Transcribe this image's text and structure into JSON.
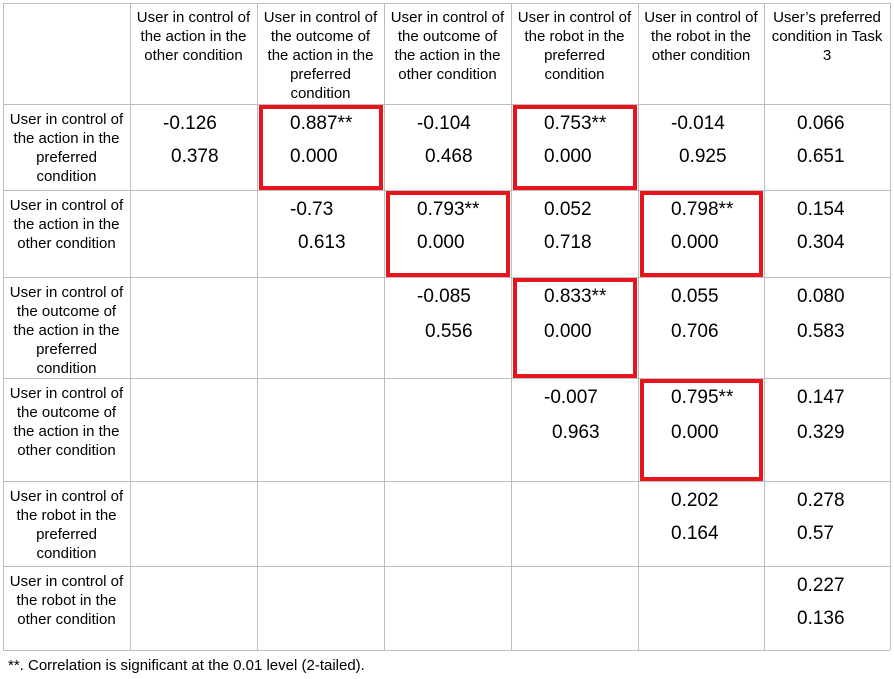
{
  "columns": [
    "User in control of the action in the other condition",
    "User in control of the outcome of the action in the preferred condition",
    "User in control of the outcome of the action in the other condition",
    "User in control of the robot in the preferred condition",
    "User in control of the robot in the other condition",
    "User’s preferred condition in Task 3"
  ],
  "rows": [
    {
      "label": "User in control of the action in the preferred condition",
      "cells": [
        {
          "r": "-0.126",
          "p": "0.378",
          "highlight": false
        },
        {
          "r": "0.887**",
          "p": "0.000",
          "highlight": true
        },
        {
          "r": "-0.104",
          "p": "0.468",
          "highlight": false
        },
        {
          "r": "0.753**",
          "p": "0.000",
          "highlight": true
        },
        {
          "r": "-0.014",
          "p": "0.925",
          "highlight": false
        },
        {
          "r": "0.066",
          "p": "0.651",
          "highlight": false
        }
      ]
    },
    {
      "label": "User in control of the action in the other condition",
      "cells": [
        null,
        {
          "r": "-0.73",
          "p": "0.613",
          "highlight": false
        },
        {
          "r": "0.793**",
          "p": "0.000",
          "highlight": true
        },
        {
          "r": "0.052",
          "p": "0.718",
          "highlight": false
        },
        {
          "r": "0.798**",
          "p": "0.000",
          "highlight": true
        },
        {
          "r": "0.154",
          "p": "0.304",
          "highlight": false
        }
      ]
    },
    {
      "label": "User in control of the outcome of the action in the preferred condition",
      "cells": [
        null,
        null,
        {
          "r": "-0.085",
          "p": "0.556",
          "highlight": false
        },
        {
          "r": "0.833**",
          "p": "0.000",
          "highlight": true
        },
        {
          "r": "0.055",
          "p": "0.706",
          "highlight": false
        },
        {
          "r": "0.080",
          "p": "0.583",
          "highlight": false
        }
      ]
    },
    {
      "label": "User in control of the outcome of the action in the other condition",
      "cells": [
        null,
        null,
        null,
        {
          "r": "-0.007",
          "p": "0.963",
          "highlight": false
        },
        {
          "r": "0.795**",
          "p": "0.000",
          "highlight": true
        },
        {
          "r": "0.147",
          "p": "0.329",
          "highlight": false
        }
      ]
    },
    {
      "label": "User in control of the robot in the preferred condition",
      "cells": [
        null,
        null,
        null,
        null,
        {
          "r": "0.202",
          "p": "0.164",
          "highlight": false
        },
        {
          "r": "0.278",
          "p": "0.57",
          "highlight": false
        }
      ]
    },
    {
      "label": "User in control of the robot in the other condition",
      "cells": [
        null,
        null,
        null,
        null,
        null,
        {
          "r": "0.227",
          "p": "0.136",
          "highlight": false
        }
      ]
    }
  ],
  "footnote": "**. Correlation is significant at the 0.01 level (2-tailed).",
  "colors": {
    "grid": "#bdbdbd",
    "highlight": "#e8141b"
  }
}
